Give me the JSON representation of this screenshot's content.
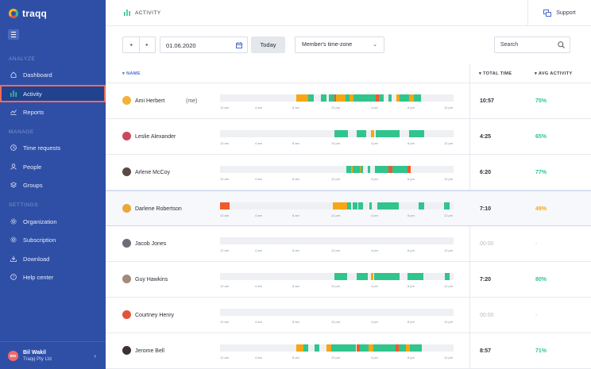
{
  "app": {
    "name": "traqq"
  },
  "sidebar": {
    "sections": [
      {
        "label": "ANALYZE",
        "top": 71
      },
      {
        "label": "MANAGE",
        "top": 163
      },
      {
        "label": "SETTINGS",
        "top": 255
      }
    ],
    "items": [
      {
        "label": "Dashboard",
        "icon": "home-icon"
      },
      {
        "label": "Activity",
        "icon": "bar-chart-icon",
        "active": true
      },
      {
        "label": "Reports",
        "icon": "reports-icon"
      },
      {
        "label": "Time requests",
        "icon": "clock-icon"
      },
      {
        "label": "People",
        "icon": "people-icon"
      },
      {
        "label": "Groups",
        "icon": "layers-icon"
      },
      {
        "label": "Organization",
        "icon": "gear-icon"
      },
      {
        "label": "Subscription",
        "icon": "gear-icon"
      },
      {
        "label": "Download",
        "icon": "download-icon"
      },
      {
        "label": "Help center",
        "icon": "help-icon"
      }
    ],
    "user": {
      "initials": "BW",
      "name": "Bil Wakil",
      "company": "Traqq Pty Ltd"
    }
  },
  "header": {
    "title": "ACTIVITY",
    "support_label": "Support"
  },
  "toolbar": {
    "prev_label": "◂",
    "next_label": "▸",
    "date_value": "01.06.2020",
    "today_label": "Today",
    "timezone_value": "Member's time-zone",
    "search_placeholder": "Search"
  },
  "table": {
    "columns": {
      "name": "NAME",
      "total": "TOTAL TIME",
      "avg": "AVG ACTIVITY"
    },
    "tick_labels": [
      "12 am",
      "4 am",
      "8 am",
      "12 pm",
      "4 pm",
      "8 pm",
      "12 pm"
    ],
    "colors": {
      "green": "#31c48d",
      "orange": "#f6a614",
      "red": "#f05a2a",
      "empty": "#eef0f3"
    },
    "rows": [
      {
        "name": "Ami Herbert",
        "me": "(me)",
        "total": "10:57",
        "avg": "75%",
        "avg_color": "#31c48d",
        "avatar_color": "#f2b233",
        "segments": [
          [
            11.8,
            13.6,
            "orange"
          ],
          [
            13.6,
            14.4,
            "green"
          ],
          [
            15.6,
            16.4,
            "green"
          ],
          [
            16.8,
            17.6,
            "green"
          ],
          [
            17.6,
            17.9,
            "red"
          ],
          [
            17.9,
            19.3,
            "orange"
          ],
          [
            19.3,
            20.0,
            "green"
          ],
          [
            20.0,
            20.6,
            "orange"
          ],
          [
            20.6,
            24.0,
            "green"
          ],
          [
            24.0,
            24.5,
            "red"
          ],
          [
            24.5,
            25.2,
            "green"
          ],
          [
            25.9,
            26.5,
            "green"
          ],
          [
            27.2,
            27.7,
            "orange"
          ],
          [
            27.7,
            29.1,
            "green"
          ],
          [
            29.1,
            29.9,
            "orange"
          ],
          [
            29.9,
            31.0,
            "green"
          ]
        ]
      },
      {
        "name": "Leslie Alexander",
        "me": "",
        "total": "4:25",
        "avg": "65%",
        "avg_color": "#31c48d",
        "avatar_color": "#c94a5a",
        "segments": [
          [
            17.6,
            19.7,
            "green"
          ],
          [
            21.1,
            22.5,
            "green"
          ],
          [
            23.3,
            23.7,
            "orange"
          ],
          [
            24.0,
            27.7,
            "green"
          ],
          [
            29.1,
            31.5,
            "green"
          ]
        ]
      },
      {
        "name": "Arlene McCoy",
        "me": "",
        "total": "6:20",
        "avg": "77%",
        "avg_color": "#31c48d",
        "avatar_color": "#5a4a45",
        "segments": [
          [
            19.5,
            20.2,
            "green"
          ],
          [
            20.2,
            20.4,
            "orange"
          ],
          [
            20.4,
            21.5,
            "green"
          ],
          [
            21.5,
            21.7,
            "orange"
          ],
          [
            21.7,
            22.0,
            "green"
          ],
          [
            22.8,
            23.2,
            "green"
          ],
          [
            23.9,
            26.0,
            "green"
          ],
          [
            26.0,
            26.6,
            "red"
          ],
          [
            26.6,
            28.9,
            "green"
          ],
          [
            28.9,
            29.4,
            "red"
          ]
        ]
      },
      {
        "name": "Darlene Robertson",
        "me": "",
        "total": "7:10",
        "avg": "49%",
        "avg_color": "#f6a614",
        "avatar_color": "#e8a93a",
        "highlight": true,
        "segments": [
          [
            0.0,
            1.5,
            "red"
          ],
          [
            17.4,
            19.6,
            "orange"
          ],
          [
            19.6,
            20.2,
            "green"
          ],
          [
            20.5,
            21.2,
            "green"
          ],
          [
            21.3,
            22.1,
            "green"
          ],
          [
            23.0,
            23.4,
            "green"
          ],
          [
            24.2,
            27.5,
            "green"
          ],
          [
            30.6,
            31.5,
            "green"
          ],
          [
            34.5,
            35.4,
            "green"
          ]
        ]
      },
      {
        "name": "Jacob Jones",
        "me": "",
        "total": "00:00",
        "avg": "-",
        "avg_color": "#b6bbc4",
        "avatar_color": "#6b6f75",
        "empty": true,
        "segments": []
      },
      {
        "name": "Guy Hawkins",
        "me": "",
        "total": "7:20",
        "avg": "80%",
        "avg_color": "#31c48d",
        "avatar_color": "#a48a78",
        "segments": [
          [
            17.6,
            19.6,
            "green"
          ],
          [
            21.1,
            22.8,
            "green"
          ],
          [
            23.3,
            23.6,
            "orange"
          ],
          [
            23.7,
            27.7,
            "green"
          ],
          [
            28.9,
            31.3,
            "green"
          ],
          [
            34.6,
            35.4,
            "green"
          ]
        ]
      },
      {
        "name": "Courtney Henry",
        "me": "",
        "total": "00:00",
        "avg": "-",
        "avg_color": "#b6bbc4",
        "avatar_color": "#e2553d",
        "empty": true,
        "segments": []
      },
      {
        "name": "Jerome Bell",
        "me": "",
        "total": "8:57",
        "avg": "71%",
        "avg_color": "#31c48d",
        "avatar_color": "#3d3230",
        "segments": [
          [
            11.8,
            12.9,
            "orange"
          ],
          [
            12.9,
            13.6,
            "green"
          ],
          [
            14.6,
            15.3,
            "green"
          ],
          [
            16.4,
            17.2,
            "orange"
          ],
          [
            17.2,
            21.0,
            "green"
          ],
          [
            21.0,
            21.5,
            "red"
          ],
          [
            21.5,
            22.9,
            "green"
          ],
          [
            22.9,
            23.6,
            "orange"
          ],
          [
            23.6,
            27.1,
            "green"
          ],
          [
            27.1,
            27.5,
            "red"
          ],
          [
            27.5,
            28.7,
            "green"
          ],
          [
            28.7,
            29.3,
            "orange"
          ],
          [
            29.3,
            31.1,
            "green"
          ]
        ]
      }
    ]
  }
}
